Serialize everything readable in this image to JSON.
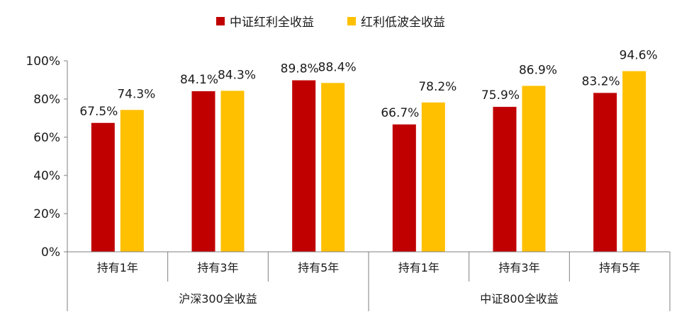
{
  "chart_data": {
    "type": "bar",
    "title": "",
    "xlabel": "",
    "ylabel": "",
    "ylim": [
      0,
      100
    ],
    "yticks": [
      "0%",
      "20%",
      "40%",
      "60%",
      "80%",
      "100%"
    ],
    "groups": [
      "沪深300全收益",
      "中证800全收益"
    ],
    "categories": [
      "持有1年",
      "持有3年",
      "持有5年",
      "持有1年",
      "持有3年",
      "持有5年"
    ],
    "series": [
      {
        "name": "中证红利全收益",
        "color": "#C00000",
        "values": [
          67.5,
          84.1,
          89.8,
          66.7,
          75.9,
          83.2
        ],
        "labels": [
          "67.5%",
          "84.1%",
          "89.8%",
          "66.7%",
          "75.9%",
          "83.2%"
        ]
      },
      {
        "name": "红利低波全收益",
        "color": "#FFC000",
        "values": [
          74.3,
          84.3,
          88.4,
          78.2,
          86.9,
          94.6
        ],
        "labels": [
          "74.3%",
          "84.3%",
          "88.4%",
          "78.2%",
          "86.9%",
          "94.6%"
        ]
      }
    ],
    "legend": "top-center",
    "grid": false
  }
}
